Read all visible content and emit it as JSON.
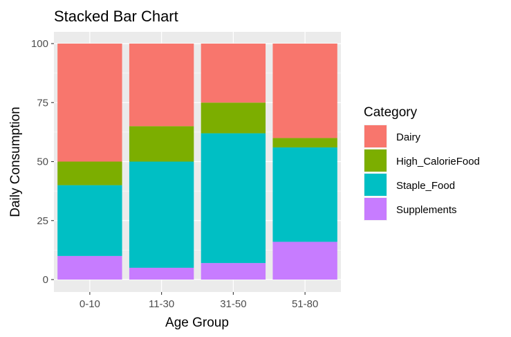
{
  "chart_data": {
    "type": "bar",
    "stacked": true,
    "title": "Stacked Bar Chart",
    "xlabel": "Age Group",
    "ylabel": "Daily Consumption",
    "categories": [
      "0-10",
      "11-30",
      "31-50",
      "51-80"
    ],
    "ylim": [
      0,
      100
    ],
    "yticks": [
      0,
      25,
      50,
      75,
      100
    ],
    "grid": true,
    "legend": {
      "title": "Category",
      "position": "right"
    },
    "series": [
      {
        "name": "Supplements",
        "color": "#C77CFF",
        "values": [
          10,
          5,
          7,
          16
        ]
      },
      {
        "name": "Staple_Food",
        "color": "#00BFC4",
        "values": [
          30,
          45,
          55,
          40
        ]
      },
      {
        "name": "High_CalorieFood",
        "color": "#7CAE00",
        "values": [
          10,
          15,
          13,
          4
        ]
      },
      {
        "name": "Dairy",
        "color": "#F8766D",
        "values": [
          50,
          35,
          25,
          40
        ]
      }
    ]
  }
}
